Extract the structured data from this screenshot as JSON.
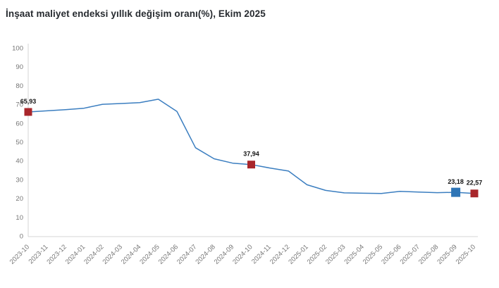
{
  "chart_data": {
    "type": "line",
    "title": "İnşaat maliyet endeksi yıllık değişim oranı(%), Ekim 2025",
    "categories": [
      "2023-10",
      "2023-11",
      "2023-12",
      "2024-01",
      "2024-02",
      "2024-03",
      "2024-04",
      "2024-05",
      "2024-06",
      "2024-07",
      "2024-08",
      "2024-09",
      "2024-10",
      "2024-11",
      "2024-12",
      "2025-01",
      "2025-02",
      "2025-03",
      "2025-04",
      "2025-05",
      "2025-06",
      "2025-07",
      "2025-08",
      "2025-09",
      "2025-10"
    ],
    "values": [
      65.93,
      66.5,
      67.1,
      67.9,
      70.0,
      70.4,
      70.9,
      72.7,
      66.2,
      46.9,
      41.0,
      38.7,
      37.94,
      36.1,
      34.5,
      27.2,
      24.2,
      22.9,
      22.7,
      22.6,
      23.7,
      23.3,
      23.0,
      23.18,
      22.57
    ],
    "ylim": [
      0,
      100
    ],
    "yticks": [
      0,
      10,
      20,
      30,
      40,
      50,
      60,
      70,
      80,
      90,
      100
    ],
    "grid": false,
    "legend": "none",
    "annotations": [
      {
        "category": "2023-10",
        "label": "65,93",
        "marker": "square",
        "color_key": "marker_red"
      },
      {
        "category": "2024-10",
        "label": "37,94",
        "marker": "square",
        "color_key": "marker_red"
      },
      {
        "category": "2025-09",
        "label": "23,18",
        "marker": "square",
        "color_key": "marker_blue"
      },
      {
        "category": "2025-10",
        "label": "22,57",
        "marker": "square",
        "color_key": "marker_red"
      }
    ],
    "colors": {
      "line": "#3b7ec0",
      "marker_red": "#a8262b",
      "marker_blue": "#2e75b6",
      "axis": "#d4d4d4",
      "tick_label": "#767676",
      "annotation_label": "#141414",
      "title": "#272b30",
      "background": "#ffffff"
    }
  }
}
